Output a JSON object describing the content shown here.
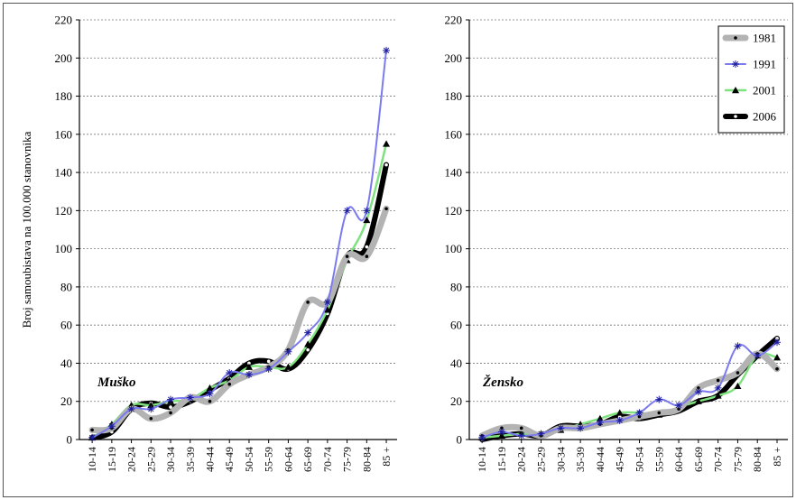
{
  "chart_data": [
    {
      "type": "line",
      "panel_label": "Muško",
      "ylabel": "Broj samoubistava na 100.000 stanovnika",
      "ylim": [
        0,
        220
      ],
      "yticks": [
        0,
        20,
        40,
        60,
        80,
        100,
        120,
        140,
        160,
        180,
        200,
        220
      ],
      "grid": true,
      "categories": [
        "10-14",
        "15-19",
        "20-24",
        "25-29",
        "30-34",
        "35-39",
        "40-44",
        "45-49",
        "50-54",
        "55-59",
        "60-64",
        "65-69",
        "70-74",
        "75-79",
        "80-84",
        "85 +"
      ],
      "series": [
        {
          "name": "1981",
          "values": [
            5,
            6,
            16,
            11,
            14,
            22,
            20,
            29,
            34,
            38,
            47,
            72,
            72,
            96,
            96,
            121
          ]
        },
        {
          "name": "1991",
          "values": [
            1,
            7,
            16,
            16,
            21,
            22,
            24,
            35,
            34,
            37,
            46,
            56,
            72,
            120,
            120,
            204
          ]
        },
        {
          "name": "2001",
          "values": [
            1,
            8,
            18,
            18,
            20,
            21,
            27,
            31,
            38,
            38,
            38,
            50,
            68,
            94,
            115,
            155
          ]
        },
        {
          "name": "2006",
          "values": [
            1,
            4,
            16,
            19,
            17,
            20,
            26,
            32,
            40,
            41,
            37,
            47,
            66,
            96,
            101,
            144
          ]
        }
      ]
    },
    {
      "type": "line",
      "panel_label": "Žensko",
      "ylim": [
        0,
        220
      ],
      "yticks": [
        0,
        20,
        40,
        60,
        80,
        100,
        120,
        140,
        160,
        180,
        200,
        220
      ],
      "grid": true,
      "categories": [
        "10-14",
        "15-19",
        "20-24",
        "25-29",
        "30-34",
        "35-39",
        "40-44",
        "45-49",
        "50-54",
        "55-59",
        "60-64",
        "65-69",
        "70-74",
        "75-79",
        "80-84",
        "85 +"
      ],
      "series": [
        {
          "name": "1981",
          "values": [
            2,
            6,
            6,
            2,
            6,
            6,
            8,
            10,
            12,
            14,
            16,
            27,
            31,
            35,
            45,
            37
          ]
        },
        {
          "name": "1991",
          "values": [
            1,
            4,
            2,
            3,
            6,
            6,
            9,
            10,
            14,
            21,
            18,
            25,
            27,
            49,
            44,
            51
          ]
        },
        {
          "name": "2001",
          "values": [
            1,
            2,
            3,
            3,
            5,
            8,
            11,
            14,
            14,
            13,
            17,
            20,
            23,
            28,
            44,
            43
          ]
        },
        {
          "name": "2006",
          "values": [
            0,
            2,
            3,
            2,
            7,
            7,
            8,
            12,
            11,
            13,
            15,
            20,
            23,
            34,
            44,
            53
          ]
        }
      ]
    }
  ],
  "legend": {
    "placement": "top-right",
    "items": [
      {
        "label": "1981",
        "color": "#b3b3b3",
        "marker": "dot"
      },
      {
        "label": "1991",
        "color": "#7b7bef",
        "marker": "star"
      },
      {
        "label": "2001",
        "color": "#7fe27f",
        "marker": "triangle"
      },
      {
        "label": "2006",
        "color": "#000000",
        "marker": "dot"
      }
    ]
  }
}
